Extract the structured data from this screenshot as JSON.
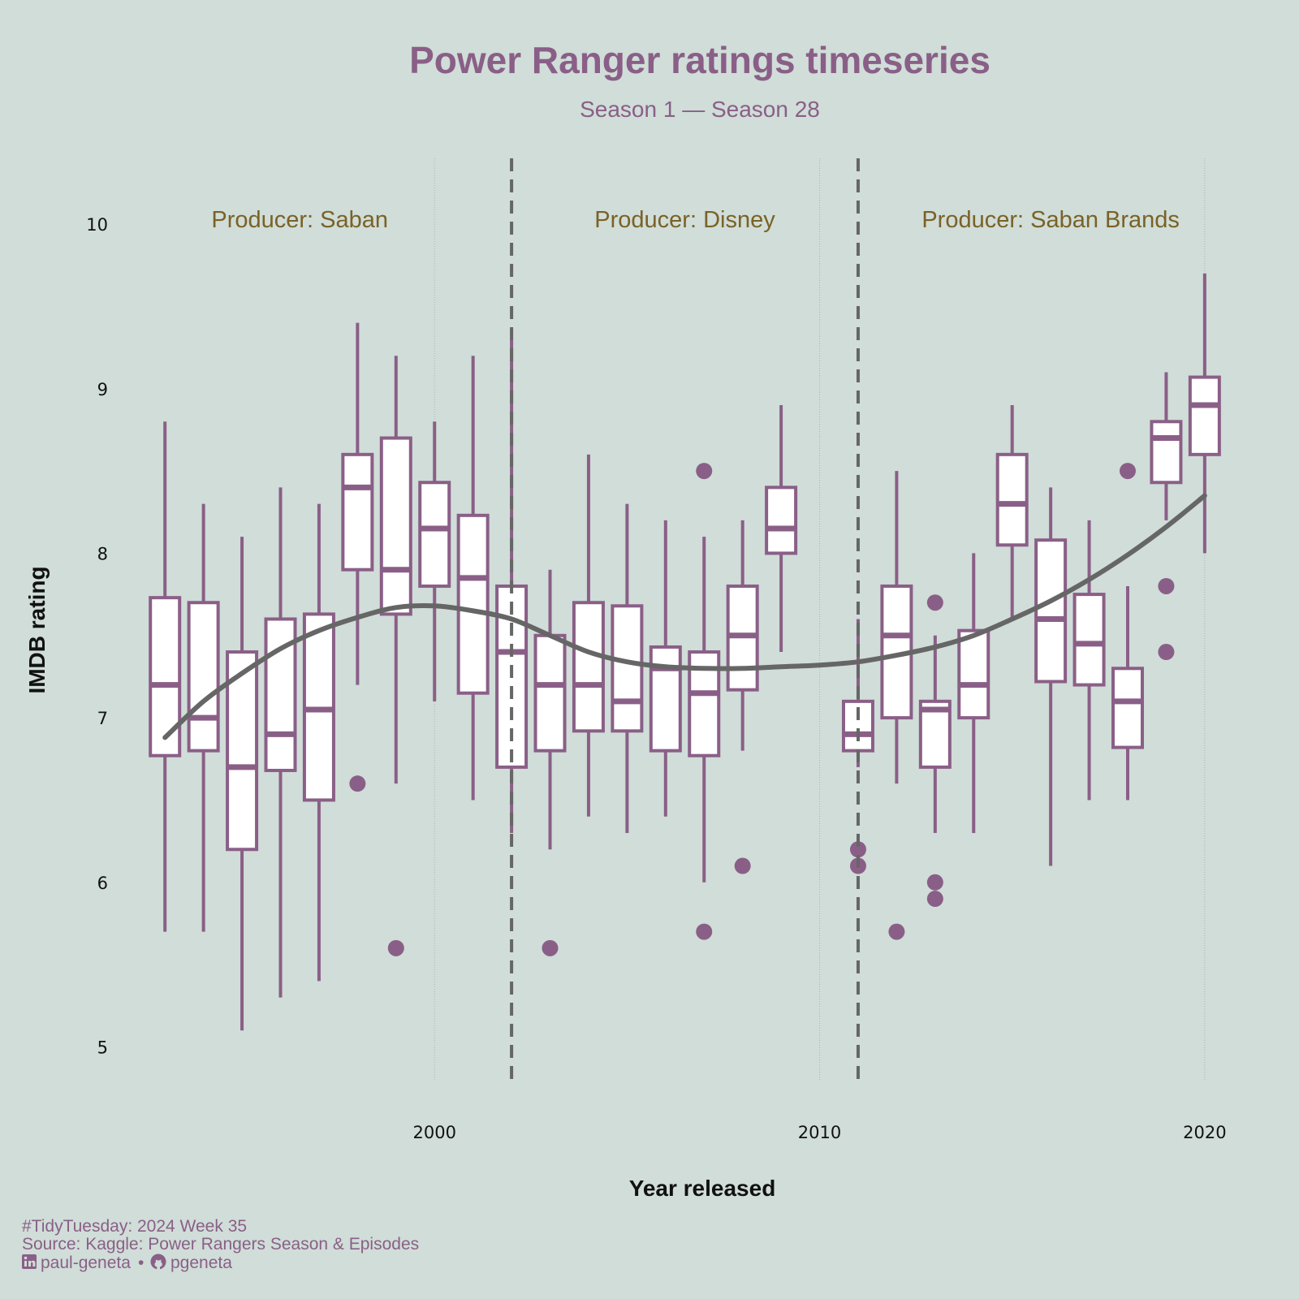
{
  "colors": {
    "background": "#d0ddd8",
    "box_outline": "#8a5f87",
    "box_fill": "#ffffff",
    "smooth_line": "#666666",
    "producer_text": "#7a6226",
    "caption_text": "#8a5f87"
  },
  "caption": {
    "line1": "#TidyTuesday: 2024 Week 35",
    "line2": "Source: Kaggle: Power Rangers Season & Episodes",
    "linkedin_handle": "paul-geneta",
    "separator": "•",
    "github_handle": "pgeneta",
    "linkedin_icon": "linkedin-icon",
    "github_icon": "github-icon"
  },
  "chart_data": {
    "type": "boxplot",
    "title": "Power Ranger ratings timeseries",
    "subtitle": "Season 1 — Season 28",
    "xlabel": "Year released",
    "ylabel": "IMDB rating",
    "xlim": [
      1992.3,
      2021.5
    ],
    "ylim": [
      4.8,
      10.4
    ],
    "x_ticks": [
      2000,
      2010,
      2020
    ],
    "y_ticks": [
      5,
      6,
      7,
      8,
      9,
      10
    ],
    "grid": "vertical dotted at x ticks",
    "vlines": [
      2002,
      2011
    ],
    "producers": [
      {
        "label": "Producer: Saban",
        "x": 1996.5
      },
      {
        "label": "Producer: Disney",
        "x": 2006.5
      },
      {
        "label": "Producer: Saban Brands",
        "x": 2016.0
      }
    ],
    "boxes": [
      {
        "x": 1993,
        "lower_whisker": 5.7,
        "q1": 6.77,
        "median": 7.2,
        "q3": 7.73,
        "upper_whisker": 8.8,
        "outliers": []
      },
      {
        "x": 1994,
        "lower_whisker": 5.7,
        "q1": 6.8,
        "median": 7.0,
        "q3": 7.7,
        "upper_whisker": 8.3,
        "outliers": []
      },
      {
        "x": 1995,
        "lower_whisker": 5.1,
        "q1": 6.2,
        "median": 6.7,
        "q3": 7.4,
        "upper_whisker": 8.1,
        "outliers": []
      },
      {
        "x": 1996,
        "lower_whisker": 5.3,
        "q1": 6.68,
        "median": 6.9,
        "q3": 7.6,
        "upper_whisker": 8.4,
        "outliers": []
      },
      {
        "x": 1997,
        "lower_whisker": 5.4,
        "q1": 6.5,
        "median": 7.05,
        "q3": 7.63,
        "upper_whisker": 8.3,
        "outliers": []
      },
      {
        "x": 1998,
        "lower_whisker": 7.2,
        "q1": 7.9,
        "median": 8.4,
        "q3": 8.6,
        "upper_whisker": 9.4,
        "outliers": [
          6.6
        ]
      },
      {
        "x": 1999,
        "lower_whisker": 6.6,
        "q1": 7.63,
        "median": 7.9,
        "q3": 8.7,
        "upper_whisker": 9.2,
        "outliers": [
          5.6
        ]
      },
      {
        "x": 2000,
        "lower_whisker": 7.1,
        "q1": 7.8,
        "median": 8.15,
        "q3": 8.43,
        "upper_whisker": 8.8,
        "outliers": []
      },
      {
        "x": 2001,
        "lower_whisker": 6.5,
        "q1": 7.15,
        "median": 7.85,
        "q3": 8.23,
        "upper_whisker": 9.2,
        "outliers": []
      },
      {
        "x": 2002,
        "lower_whisker": 6.3,
        "q1": 6.7,
        "median": 7.4,
        "q3": 7.8,
        "upper_whisker": 9.3,
        "outliers": []
      },
      {
        "x": 2003,
        "lower_whisker": 6.2,
        "q1": 6.8,
        "median": 7.2,
        "q3": 7.5,
        "upper_whisker": 7.9,
        "outliers": [
          5.6
        ]
      },
      {
        "x": 2004,
        "lower_whisker": 6.4,
        "q1": 6.92,
        "median": 7.2,
        "q3": 7.7,
        "upper_whisker": 8.6,
        "outliers": []
      },
      {
        "x": 2005,
        "lower_whisker": 6.3,
        "q1": 6.92,
        "median": 7.1,
        "q3": 7.68,
        "upper_whisker": 8.3,
        "outliers": []
      },
      {
        "x": 2006,
        "lower_whisker": 6.4,
        "q1": 6.8,
        "median": 7.3,
        "q3": 7.43,
        "upper_whisker": 8.2,
        "outliers": []
      },
      {
        "x": 2007,
        "lower_whisker": 6.0,
        "q1": 6.77,
        "median": 7.15,
        "q3": 7.4,
        "upper_whisker": 8.1,
        "outliers": [
          8.5,
          5.7
        ]
      },
      {
        "x": 2008,
        "lower_whisker": 6.8,
        "q1": 7.17,
        "median": 7.5,
        "q3": 7.8,
        "upper_whisker": 8.2,
        "outliers": [
          6.1
        ]
      },
      {
        "x": 2009,
        "lower_whisker": 7.4,
        "q1": 8.0,
        "median": 8.15,
        "q3": 8.4,
        "upper_whisker": 8.9,
        "outliers": []
      },
      {
        "x": 2011,
        "lower_whisker": 6.7,
        "q1": 6.8,
        "median": 6.9,
        "q3": 7.1,
        "upper_whisker": 7.6,
        "outliers": [
          6.2,
          6.1
        ]
      },
      {
        "x": 2012,
        "lower_whisker": 6.6,
        "q1": 7.0,
        "median": 7.5,
        "q3": 7.8,
        "upper_whisker": 8.5,
        "outliers": [
          5.7
        ]
      },
      {
        "x": 2013,
        "lower_whisker": 6.3,
        "q1": 6.7,
        "median": 7.05,
        "q3": 7.1,
        "upper_whisker": 7.5,
        "outliers": [
          7.7,
          6.0,
          5.9
        ]
      },
      {
        "x": 2014,
        "lower_whisker": 6.3,
        "q1": 7.0,
        "median": 7.2,
        "q3": 7.53,
        "upper_whisker": 8.0,
        "outliers": []
      },
      {
        "x": 2015,
        "lower_whisker": 7.6,
        "q1": 8.05,
        "median": 8.3,
        "q3": 8.6,
        "upper_whisker": 8.9,
        "outliers": []
      },
      {
        "x": 2016,
        "lower_whisker": 6.1,
        "q1": 7.22,
        "median": 7.6,
        "q3": 8.08,
        "upper_whisker": 8.4,
        "outliers": []
      },
      {
        "x": 2017,
        "lower_whisker": 6.5,
        "q1": 7.2,
        "median": 7.45,
        "q3": 7.75,
        "upper_whisker": 8.2,
        "outliers": []
      },
      {
        "x": 2018,
        "lower_whisker": 6.5,
        "q1": 6.82,
        "median": 7.1,
        "q3": 7.3,
        "upper_whisker": 7.8,
        "outliers": [
          8.5
        ]
      },
      {
        "x": 2019,
        "lower_whisker": 8.2,
        "q1": 8.43,
        "median": 8.7,
        "q3": 8.8,
        "upper_whisker": 9.1,
        "outliers": [
          7.8,
          7.4
        ]
      },
      {
        "x": 2020,
        "lower_whisker": 8.0,
        "q1": 8.6,
        "median": 8.9,
        "q3": 9.07,
        "upper_whisker": 9.7,
        "outliers": []
      }
    ],
    "smooth": {
      "x": [
        1993,
        1994,
        1995,
        1996,
        1997,
        1998,
        1999,
        2000,
        2001,
        2002,
        2003,
        2004,
        2005,
        2006,
        2007,
        2008,
        2009,
        2010,
        2011,
        2012,
        2013,
        2014,
        2015,
        2016,
        2017,
        2018,
        2019,
        2020
      ],
      "y": [
        6.88,
        7.1,
        7.27,
        7.42,
        7.53,
        7.61,
        7.67,
        7.68,
        7.65,
        7.6,
        7.5,
        7.4,
        7.34,
        7.31,
        7.3,
        7.3,
        7.31,
        7.32,
        7.34,
        7.38,
        7.43,
        7.5,
        7.6,
        7.71,
        7.84,
        7.99,
        8.16,
        8.35
      ]
    }
  }
}
